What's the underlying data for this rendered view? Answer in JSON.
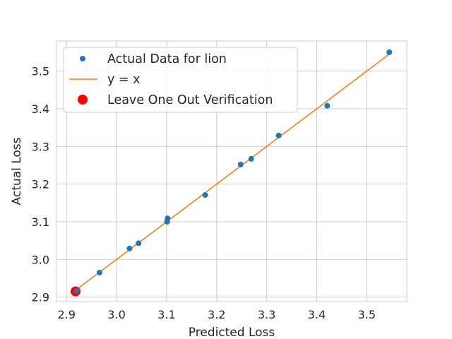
{
  "chart_data": {
    "type": "scatter",
    "title": "",
    "xlabel": "Predicted Loss",
    "ylabel": "Actual Loss",
    "xlim": [
      2.88,
      3.58
    ],
    "ylim": [
      2.888,
      3.58
    ],
    "xticks": [
      2.9,
      3.0,
      3.1,
      3.2,
      3.3,
      3.4,
      3.5
    ],
    "yticks": [
      2.9,
      3.0,
      3.1,
      3.2,
      3.3,
      3.4,
      3.5
    ],
    "xtick_labels": [
      "2.9",
      "3.0",
      "3.1",
      "3.2",
      "3.3",
      "3.4",
      "3.5"
    ],
    "ytick_labels": [
      "2.9",
      "3.0",
      "3.1",
      "3.2",
      "3.3",
      "3.4",
      "3.5"
    ],
    "grid": true,
    "legend_position": "top-left",
    "series": [
      {
        "name": "Actual Data for lion",
        "kind": "scatter",
        "color": "#1f77b4",
        "points": [
          {
            "x": 2.92,
            "y": 2.916
          },
          {
            "x": 2.966,
            "y": 2.965
          },
          {
            "x": 3.026,
            "y": 3.029
          },
          {
            "x": 3.044,
            "y": 3.043
          },
          {
            "x": 3.101,
            "y": 3.1
          },
          {
            "x": 3.102,
            "y": 3.109
          },
          {
            "x": 3.177,
            "y": 3.171
          },
          {
            "x": 3.248,
            "y": 3.252
          },
          {
            "x": 3.269,
            "y": 3.267
          },
          {
            "x": 3.324,
            "y": 3.329
          },
          {
            "x": 3.421,
            "y": 3.408
          },
          {
            "x": 3.545,
            "y": 3.55
          }
        ]
      },
      {
        "name": "y = x",
        "kind": "line",
        "color": "#ff7f0e",
        "points": [
          {
            "x": 2.918,
            "y": 2.918
          },
          {
            "x": 3.545,
            "y": 3.545
          }
        ]
      },
      {
        "name": "Leave One Out Verification",
        "kind": "highlight",
        "color": "#ff0000",
        "points": [
          {
            "x": 2.918,
            "y": 2.915
          }
        ]
      }
    ]
  }
}
